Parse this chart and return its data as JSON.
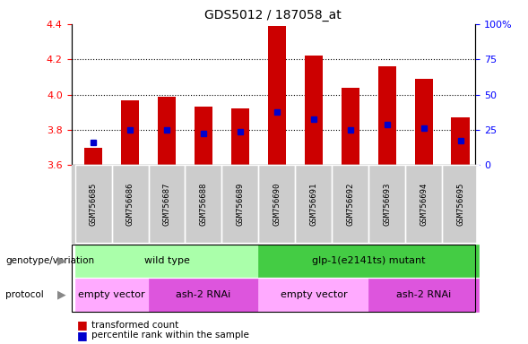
{
  "title": "GDS5012 / 187058_at",
  "samples": [
    "GSM756685",
    "GSM756686",
    "GSM756687",
    "GSM756688",
    "GSM756689",
    "GSM756690",
    "GSM756691",
    "GSM756692",
    "GSM756693",
    "GSM756694",
    "GSM756695"
  ],
  "bar_values": [
    3.7,
    3.97,
    3.99,
    3.93,
    3.92,
    4.39,
    4.22,
    4.04,
    4.16,
    4.09,
    3.87
  ],
  "blue_marker_values": [
    3.73,
    3.8,
    3.8,
    3.78,
    3.79,
    3.9,
    3.86,
    3.8,
    3.83,
    3.81,
    3.74
  ],
  "bar_bottom": 3.6,
  "ylim_left": [
    3.6,
    4.4
  ],
  "ylim_right": [
    0,
    100
  ],
  "yticks_left": [
    3.6,
    3.8,
    4.0,
    4.2,
    4.4
  ],
  "yticks_right": [
    0,
    25,
    50,
    75,
    100
  ],
  "ytick_labels_right": [
    "0",
    "25",
    "50",
    "75",
    "100%"
  ],
  "bar_color": "#cc0000",
  "blue_color": "#0000cc",
  "geno_configs": [
    {
      "label": "wild type",
      "x_start": 0,
      "x_end": 4,
      "color": "#aaffaa"
    },
    {
      "label": "glp-1(e2141ts) mutant",
      "x_start": 5,
      "x_end": 10,
      "color": "#44cc44"
    }
  ],
  "proto_configs": [
    {
      "label": "empty vector",
      "x_start": 0,
      "x_end": 1,
      "color": "#ffaaff"
    },
    {
      "label": "ash-2 RNAi",
      "x_start": 2,
      "x_end": 4,
      "color": "#dd55dd"
    },
    {
      "label": "empty vector",
      "x_start": 5,
      "x_end": 7,
      "color": "#ffaaff"
    },
    {
      "label": "ash-2 RNAi",
      "x_start": 8,
      "x_end": 10,
      "color": "#dd55dd"
    }
  ],
  "legend_items": [
    {
      "label": "transformed count",
      "color": "#cc0000"
    },
    {
      "label": "percentile rank within the sample",
      "color": "#0000cc"
    }
  ],
  "bar_width": 0.5,
  "xlim": [
    -0.6,
    10.4
  ]
}
